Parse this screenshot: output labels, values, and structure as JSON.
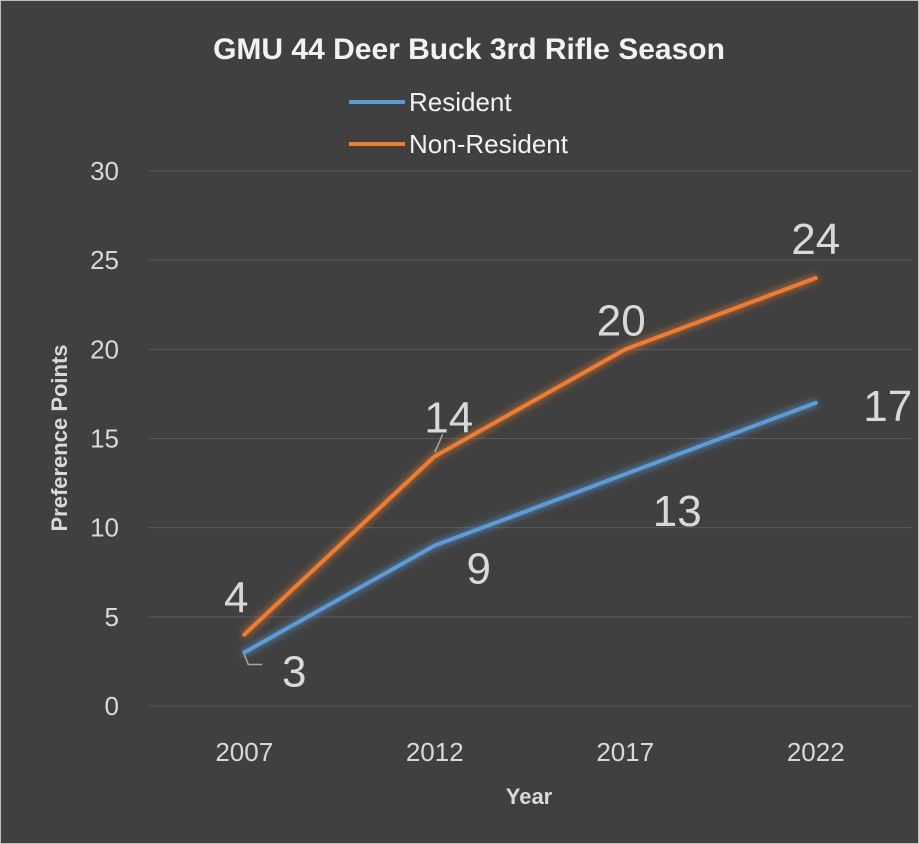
{
  "chart_data": {
    "type": "line",
    "title": "GMU 44 Deer Buck 3rd Rifle Season",
    "xlabel": "Year",
    "ylabel": "Preference Points",
    "categories": [
      "2007",
      "2012",
      "2017",
      "2022"
    ],
    "ylim": [
      0,
      30
    ],
    "yticks": [
      0,
      5,
      10,
      15,
      20,
      25,
      30
    ],
    "grid": true,
    "legend_position": "top",
    "series": [
      {
        "name": "Resident",
        "color": "#5b9bd5",
        "values": [
          3,
          9,
          13,
          17
        ]
      },
      {
        "name": "Non-Resident",
        "color": "#ed7d31",
        "values": [
          4,
          14,
          20,
          24
        ]
      }
    ],
    "data_labels": [
      {
        "series": "Resident",
        "labels": [
          "3",
          "9",
          "13",
          "17"
        ]
      },
      {
        "series": "Non-Resident",
        "labels": [
          "4",
          "14",
          "20",
          "24"
        ]
      }
    ]
  },
  "colors": {
    "background": "#404040",
    "gridline": "#595959",
    "text": "#d9d9d9"
  }
}
